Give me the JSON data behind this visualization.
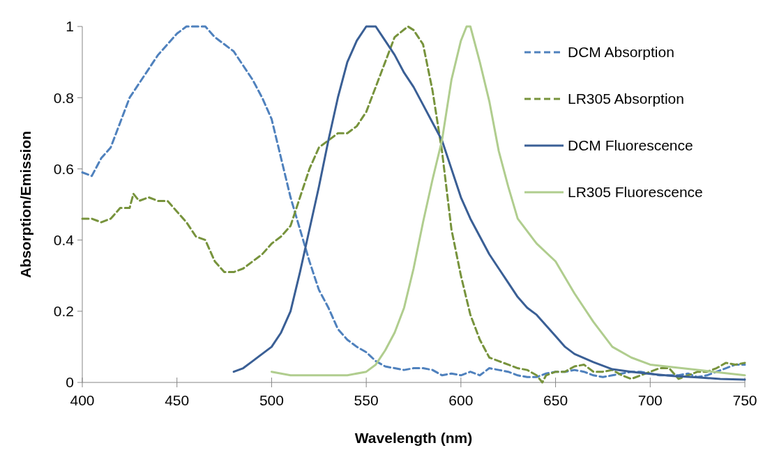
{
  "chart_data": {
    "type": "line",
    "xlabel": "Wavelength (nm)",
    "ylabel": "Absorption/Emission",
    "xlim": [
      400,
      750
    ],
    "ylim": [
      0,
      1
    ],
    "xticks": [
      400,
      450,
      500,
      550,
      600,
      650,
      700,
      750
    ],
    "yticks": [
      0,
      0.2,
      0.4,
      0.6,
      0.8,
      1
    ],
    "grid": false,
    "legend": "top right",
    "marker": "none",
    "series": [
      {
        "name": "DCM Absorption",
        "color": "#4f81bd",
        "line_style": "dashed",
        "x": [
          400,
          405,
          410,
          415,
          420,
          425,
          430,
          435,
          440,
          445,
          450,
          455,
          460,
          465,
          470,
          475,
          480,
          485,
          490,
          495,
          500,
          505,
          510,
          515,
          520,
          525,
          530,
          535,
          540,
          545,
          550,
          555,
          560,
          565,
          570,
          575,
          580,
          585,
          590,
          595,
          600,
          605,
          610,
          615,
          620,
          625,
          630,
          635,
          640,
          645,
          650,
          655,
          660,
          665,
          670,
          675,
          680,
          685,
          690,
          695,
          700,
          705,
          710,
          715,
          720,
          725,
          730,
          735,
          740,
          745,
          750
        ],
        "values": [
          0.59,
          0.58,
          0.63,
          0.66,
          0.73,
          0.8,
          0.84,
          0.88,
          0.92,
          0.95,
          0.98,
          1,
          1,
          1,
          0.97,
          0.95,
          0.93,
          0.89,
          0.85,
          0.8,
          0.74,
          0.63,
          0.52,
          0.43,
          0.34,
          0.26,
          0.21,
          0.15,
          0.12,
          0.1,
          0.085,
          0.06,
          0.045,
          0.04,
          0.035,
          0.04,
          0.04,
          0.035,
          0.02,
          0.025,
          0.02,
          0.03,
          0.02,
          0.04,
          0.035,
          0.03,
          0.02,
          0.015,
          0.015,
          0.025,
          0.03,
          0.03,
          0.035,
          0.03,
          0.02,
          0.015,
          0.02,
          0.025,
          0.03,
          0.03,
          0.025,
          0.02,
          0.02,
          0.02,
          0.025,
          0.015,
          0.02,
          0.03,
          0.04,
          0.05,
          0.05
        ]
      },
      {
        "name": "LR305 Absorption",
        "color": "#77933c",
        "line_style": "dashed",
        "x": [
          400,
          405,
          410,
          415,
          420,
          425,
          427,
          430,
          435,
          440,
          445,
          450,
          455,
          460,
          465,
          470,
          475,
          480,
          485,
          490,
          495,
          500,
          505,
          510,
          515,
          520,
          525,
          530,
          535,
          540,
          545,
          550,
          555,
          560,
          565,
          572,
          575,
          580,
          585,
          590,
          595,
          600,
          605,
          610,
          615,
          620,
          625,
          630,
          635,
          640,
          643,
          645,
          650,
          655,
          660,
          665,
          670,
          675,
          680,
          685,
          690,
          695,
          700,
          705,
          710,
          715,
          720,
          725,
          730,
          735,
          740,
          745,
          750
        ],
        "values": [
          0.46,
          0.46,
          0.45,
          0.46,
          0.49,
          0.49,
          0.53,
          0.51,
          0.52,
          0.51,
          0.51,
          0.48,
          0.45,
          0.41,
          0.4,
          0.34,
          0.31,
          0.31,
          0.32,
          0.34,
          0.36,
          0.39,
          0.41,
          0.44,
          0.52,
          0.6,
          0.66,
          0.68,
          0.7,
          0.7,
          0.72,
          0.76,
          0.83,
          0.9,
          0.97,
          1,
          0.99,
          0.95,
          0.82,
          0.65,
          0.43,
          0.3,
          0.19,
          0.12,
          0.07,
          0.06,
          0.05,
          0.04,
          0.035,
          0.02,
          0,
          0.02,
          0.03,
          0.03,
          0.045,
          0.05,
          0.03,
          0.03,
          0.035,
          0.02,
          0.01,
          0.02,
          0.03,
          0.04,
          0.04,
          0.01,
          0.02,
          0.03,
          0.03,
          0.04,
          0.055,
          0.05,
          0.055
        ]
      },
      {
        "name": "DCM Fluorescence",
        "color": "#3a5f95",
        "line_style": "solid",
        "x": [
          480,
          485,
          490,
          495,
          500,
          505,
          510,
          515,
          520,
          525,
          530,
          535,
          540,
          545,
          550,
          555,
          560,
          565,
          570,
          575,
          580,
          585,
          590,
          595,
          600,
          605,
          610,
          615,
          620,
          625,
          630,
          635,
          640,
          645,
          650,
          655,
          660,
          670,
          680,
          690,
          700,
          712,
          725,
          737,
          750
        ],
        "values": [
          0.03,
          0.04,
          0.06,
          0.08,
          0.1,
          0.14,
          0.2,
          0.31,
          0.43,
          0.55,
          0.68,
          0.8,
          0.9,
          0.96,
          1,
          1,
          0.96,
          0.92,
          0.87,
          0.83,
          0.78,
          0.73,
          0.68,
          0.6,
          0.52,
          0.46,
          0.41,
          0.36,
          0.32,
          0.28,
          0.24,
          0.21,
          0.19,
          0.16,
          0.13,
          0.1,
          0.08,
          0.057,
          0.037,
          0.03,
          0.024,
          0.018,
          0.014,
          0.01,
          0.008
        ]
      },
      {
        "name": "LR305 Fluorescence",
        "color": "#b0cd8e",
        "line_style": "solid",
        "x": [
          500,
          510,
          520,
          530,
          540,
          550,
          555,
          560,
          565,
          570,
          575,
          580,
          585,
          590,
          595,
          600,
          603,
          605,
          610,
          615,
          620,
          625,
          630,
          640,
          650,
          660,
          670,
          680,
          690,
          700,
          725,
          750
        ],
        "values": [
          0.03,
          0.02,
          0.02,
          0.02,
          0.02,
          0.03,
          0.05,
          0.09,
          0.14,
          0.21,
          0.32,
          0.45,
          0.57,
          0.68,
          0.85,
          0.96,
          1,
          1,
          0.9,
          0.79,
          0.65,
          0.55,
          0.46,
          0.39,
          0.34,
          0.25,
          0.17,
          0.1,
          0.07,
          0.05,
          0.035,
          0.02
        ]
      }
    ]
  }
}
